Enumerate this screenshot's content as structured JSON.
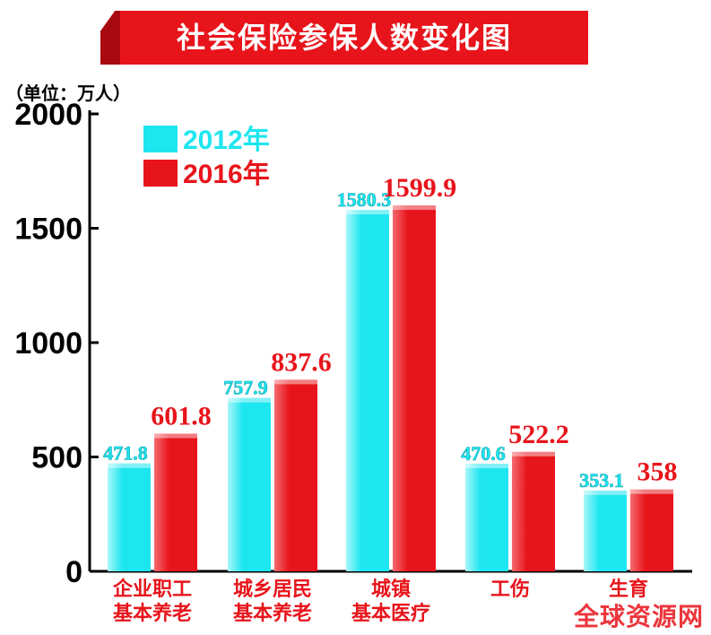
{
  "title": "社会保险参保人数变化图",
  "unit_label": "（单位：万人）",
  "watermark": "全球资源网",
  "colors": {
    "series_2012": "#1ee6f0",
    "series_2016": "#e8141b",
    "axis": "#000000"
  },
  "chart_data": {
    "type": "bar",
    "title": "社会保险参保人数变化图",
    "xlabel": "",
    "ylabel": "",
    "ylim": [
      0,
      2000
    ],
    "yticks": [
      0,
      500,
      1000,
      1500,
      2000
    ],
    "grid": false,
    "legend_position": "top-left",
    "categories": [
      [
        "企业职工",
        "基本养老"
      ],
      [
        "城乡居民",
        "基本养老"
      ],
      [
        "城镇",
        "基本医疗"
      ],
      [
        "工伤"
      ],
      [
        "生育"
      ]
    ],
    "series": [
      {
        "name": "2012年",
        "values": [
          471.8,
          757.9,
          1580.3,
          470.6,
          353.1
        ],
        "labels": [
          "471.8",
          "757.9",
          "1580.3",
          "470.6",
          "353.1"
        ]
      },
      {
        "name": "2016年",
        "values": [
          601.8,
          837.6,
          1599.9,
          522.2,
          358
        ],
        "labels": [
          "601.8",
          "837.6",
          "1599.9",
          "522.2",
          "358"
        ]
      }
    ]
  }
}
